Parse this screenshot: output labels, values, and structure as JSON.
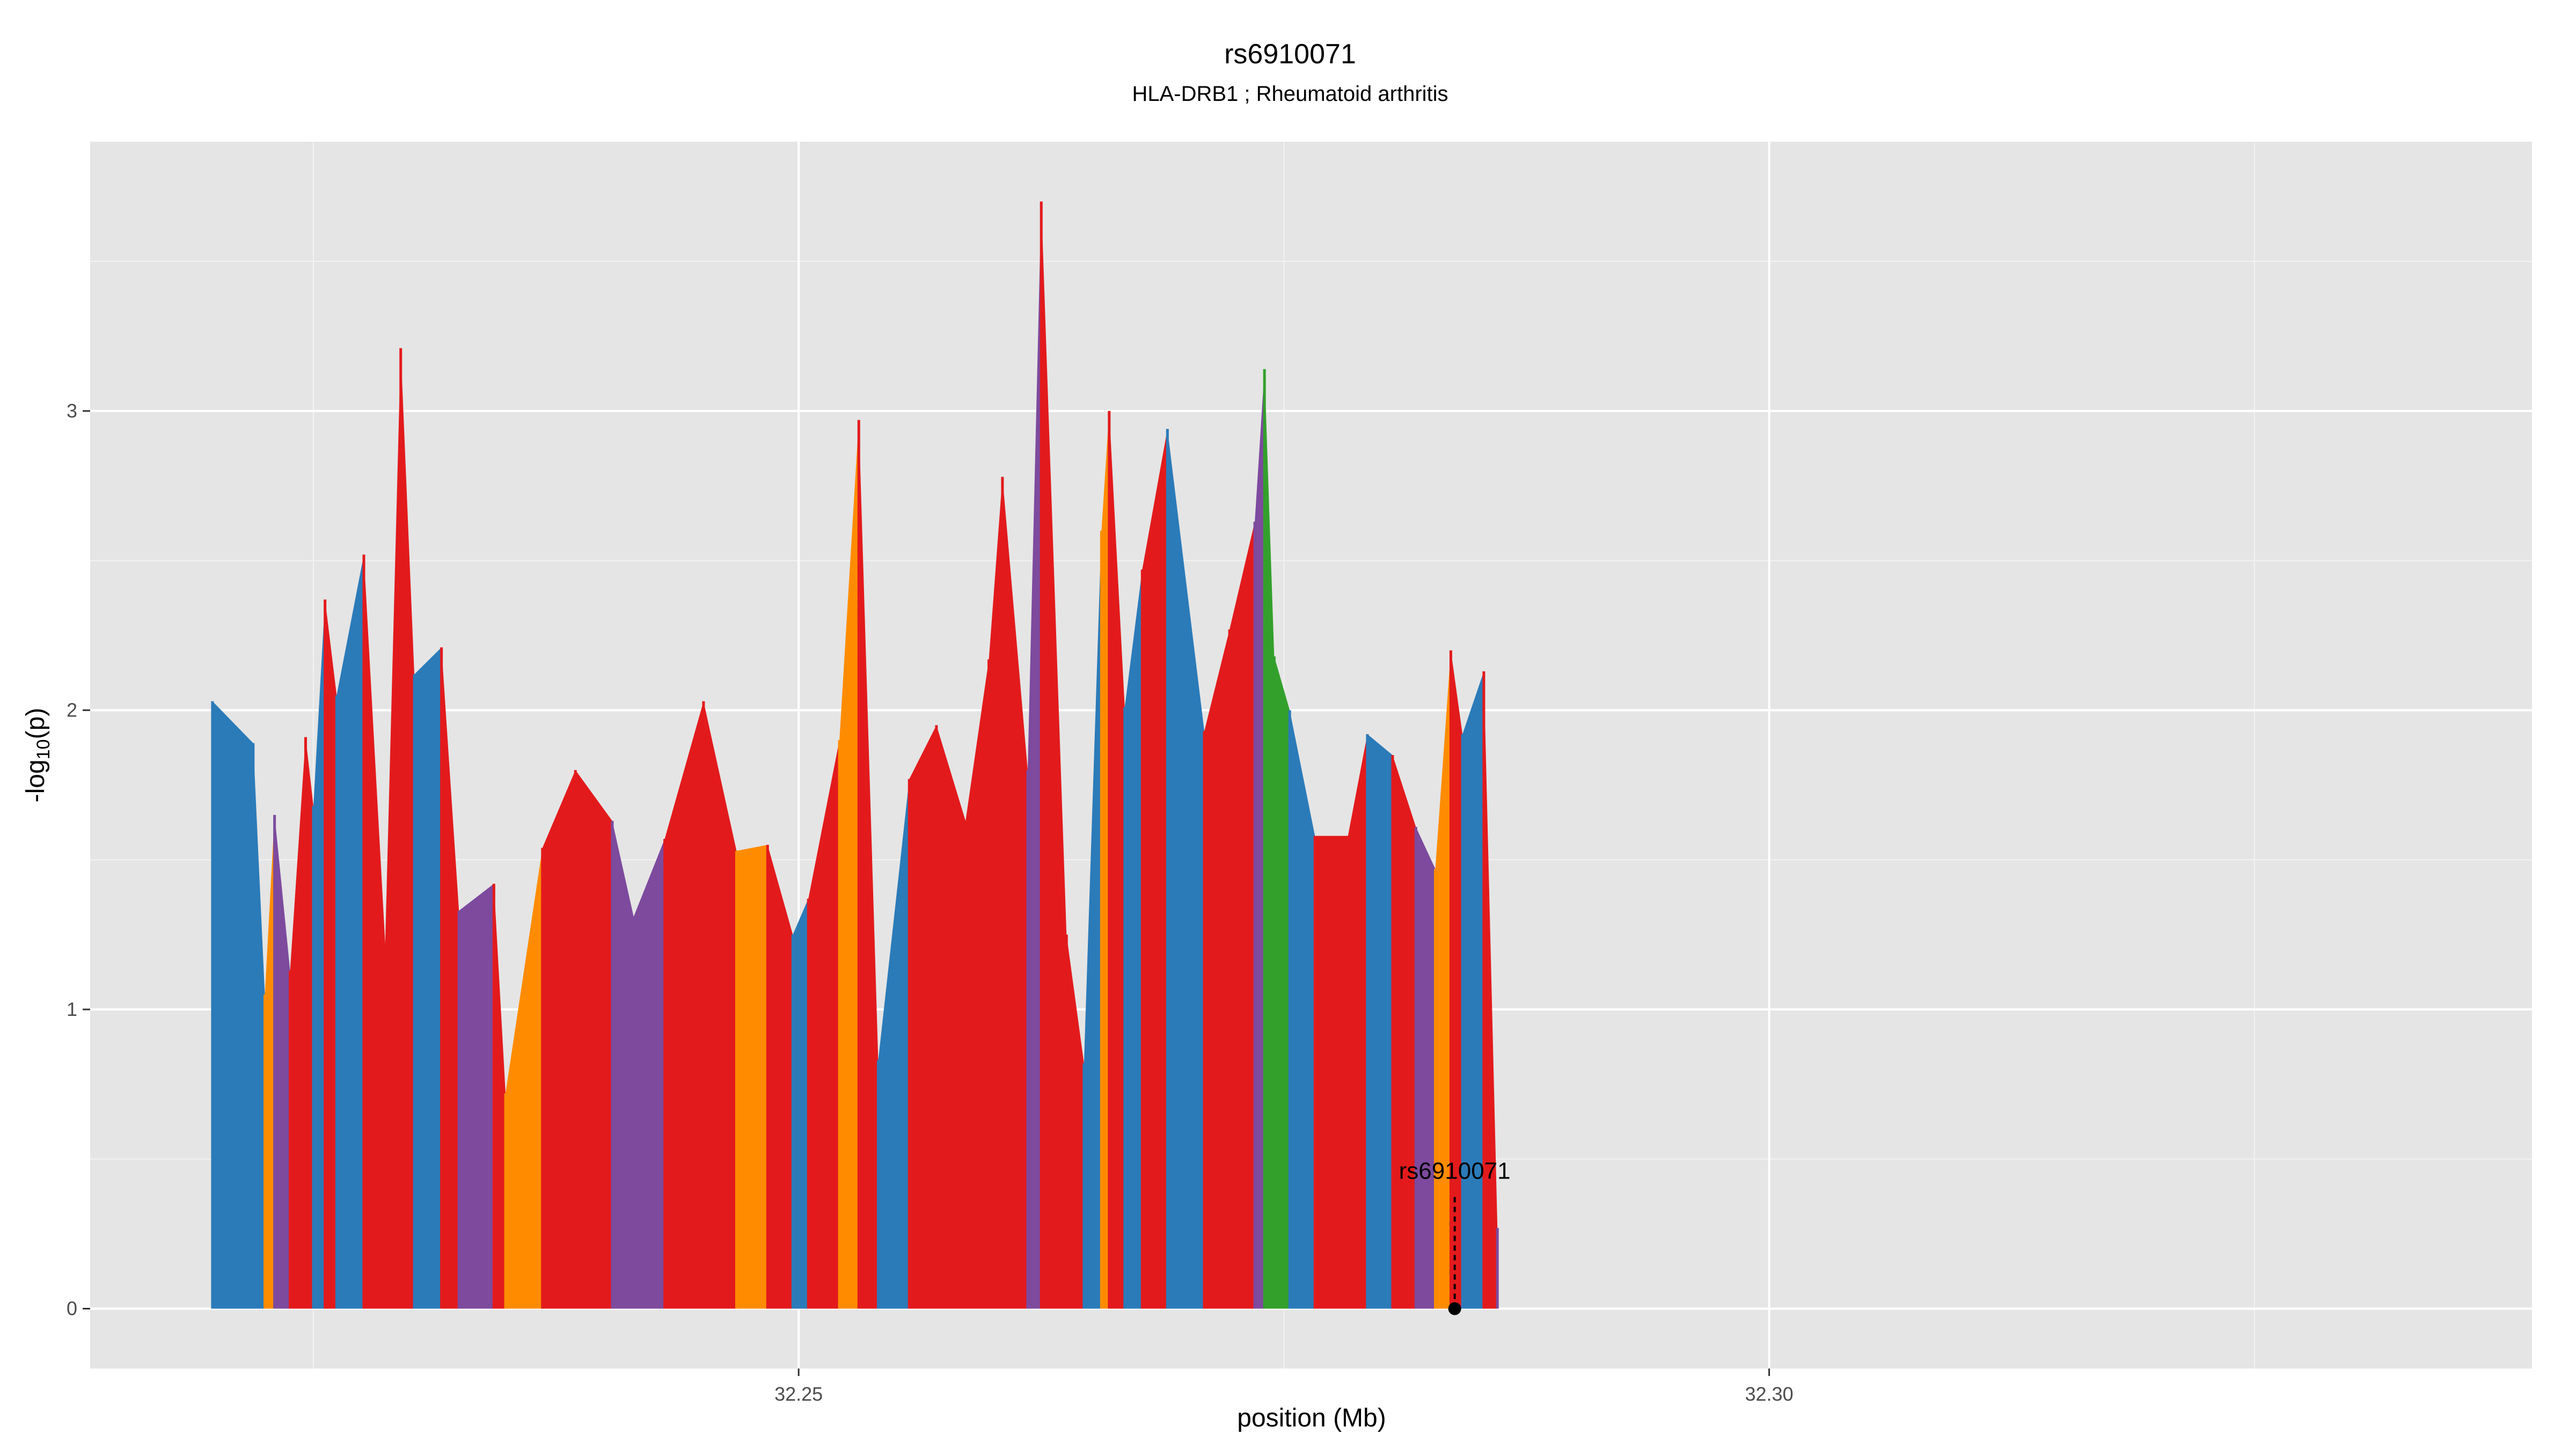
{
  "chart_data": {
    "type": "area",
    "title": "rs6910071",
    "subtitle": "HLA-DRB1 ; Rheumatoid arthritis",
    "xlabel": "position (Mb)",
    "ylabel_main": "-log",
    "ylabel_sub": "10",
    "ylabel_tail": "(p)",
    "xlim": [
      32.2135,
      32.3393
    ],
    "ylim": [
      -0.2,
      3.9
    ],
    "x_ticks": [
      32.25,
      32.3
    ],
    "x_tick_labels": [
      "32.25",
      "32.30"
    ],
    "x_minor_ticks": [
      32.225,
      32.275,
      32.325
    ],
    "y_ticks": [
      0,
      1,
      2,
      3
    ],
    "y_tick_labels": [
      "0",
      "1",
      "2",
      "3"
    ],
    "grid": true,
    "colors": {
      "panel": "#e5e5e5",
      "grid_major": "#ffffff",
      "grid_minor": "#f2f2f2",
      "red": "#e31a1c",
      "blue": "#2b7bb9",
      "orange": "#ff8c00",
      "purple": "#7d4a9e",
      "green": "#33a02c"
    },
    "lead_snp": {
      "label": "rs6910071",
      "x": 32.2838,
      "y": 0.0
    },
    "spikes": [
      {
        "x": 32.2198,
        "y": 2.03,
        "c": "blue"
      },
      {
        "x": 32.2219,
        "y": 1.89,
        "c": "blue"
      },
      {
        "x": 32.2225,
        "y": 1.05,
        "c": "orange"
      },
      {
        "x": 32.223,
        "y": 1.65,
        "c": "purple"
      },
      {
        "x": 32.2238,
        "y": 1.13,
        "c": "red"
      },
      {
        "x": 32.2246,
        "y": 1.91,
        "c": "red"
      },
      {
        "x": 32.225,
        "y": 1.68,
        "c": "blue"
      },
      {
        "x": 32.2256,
        "y": 2.37,
        "c": "red"
      },
      {
        "x": 32.2262,
        "y": 2.05,
        "c": "blue"
      },
      {
        "x": 32.2276,
        "y": 2.52,
        "c": "red"
      },
      {
        "x": 32.2287,
        "y": 1.22,
        "c": "red"
      },
      {
        "x": 32.2295,
        "y": 3.21,
        "c": "red"
      },
      {
        "x": 32.2302,
        "y": 2.12,
        "c": "blue"
      },
      {
        "x": 32.2316,
        "y": 2.21,
        "c": "red"
      },
      {
        "x": 32.2325,
        "y": 1.33,
        "c": "purple"
      },
      {
        "x": 32.2343,
        "y": 1.42,
        "c": "red"
      },
      {
        "x": 32.2349,
        "y": 0.72,
        "c": "orange"
      },
      {
        "x": 32.2368,
        "y": 1.54,
        "c": "red"
      },
      {
        "x": 32.2385,
        "y": 1.8,
        "c": "red"
      },
      {
        "x": 32.2404,
        "y": 1.63,
        "c": "purple"
      },
      {
        "x": 32.2415,
        "y": 1.31,
        "c": "purple"
      },
      {
        "x": 32.2431,
        "y": 1.57,
        "c": "red"
      },
      {
        "x": 32.2451,
        "y": 2.03,
        "c": "red"
      },
      {
        "x": 32.2468,
        "y": 1.53,
        "c": "orange"
      },
      {
        "x": 32.2484,
        "y": 1.55,
        "c": "red"
      },
      {
        "x": 32.2497,
        "y": 1.25,
        "c": "blue"
      },
      {
        "x": 32.2505,
        "y": 1.37,
        "c": "red"
      },
      {
        "x": 32.2521,
        "y": 1.9,
        "c": "orange"
      },
      {
        "x": 32.2531,
        "y": 2.97,
        "c": "red"
      },
      {
        "x": 32.2541,
        "y": 0.83,
        "c": "blue"
      },
      {
        "x": 32.2557,
        "y": 1.77,
        "c": "red"
      },
      {
        "x": 32.2571,
        "y": 1.95,
        "c": "red"
      },
      {
        "x": 32.2586,
        "y": 1.63,
        "c": "red"
      },
      {
        "x": 32.2598,
        "y": 2.17,
        "c": "red"
      },
      {
        "x": 32.2605,
        "y": 2.78,
        "c": "red"
      },
      {
        "x": 32.2618,
        "y": 1.8,
        "c": "purple"
      },
      {
        "x": 32.2625,
        "y": 3.7,
        "c": "red"
      },
      {
        "x": 32.2638,
        "y": 1.25,
        "c": "red"
      },
      {
        "x": 32.2647,
        "y": 0.82,
        "c": "blue"
      },
      {
        "x": 32.2656,
        "y": 2.6,
        "c": "orange"
      },
      {
        "x": 32.266,
        "y": 3.0,
        "c": "red"
      },
      {
        "x": 32.2668,
        "y": 2.01,
        "c": "blue"
      },
      {
        "x": 32.2677,
        "y": 2.47,
        "c": "red"
      },
      {
        "x": 32.269,
        "y": 2.94,
        "c": "blue"
      },
      {
        "x": 32.2709,
        "y": 1.93,
        "c": "red"
      },
      {
        "x": 32.2722,
        "y": 2.27,
        "c": "red"
      },
      {
        "x": 32.2735,
        "y": 2.63,
        "c": "purple"
      },
      {
        "x": 32.274,
        "y": 3.14,
        "c": "green"
      },
      {
        "x": 32.2745,
        "y": 2.18,
        "c": "green"
      },
      {
        "x": 32.2753,
        "y": 2.0,
        "c": "blue"
      },
      {
        "x": 32.2766,
        "y": 1.58,
        "c": "red"
      },
      {
        "x": 32.2783,
        "y": 1.58,
        "c": "red"
      },
      {
        "x": 32.2793,
        "y": 1.92,
        "c": "blue"
      },
      {
        "x": 32.2806,
        "y": 1.85,
        "c": "red"
      },
      {
        "x": 32.2818,
        "y": 1.61,
        "c": "purple"
      },
      {
        "x": 32.2828,
        "y": 1.47,
        "c": "orange"
      },
      {
        "x": 32.2836,
        "y": 2.2,
        "c": "red"
      },
      {
        "x": 32.2842,
        "y": 1.92,
        "c": "blue"
      },
      {
        "x": 32.2853,
        "y": 2.13,
        "c": "red"
      },
      {
        "x": 32.286,
        "y": 0.27,
        "c": "purple"
      }
    ]
  }
}
